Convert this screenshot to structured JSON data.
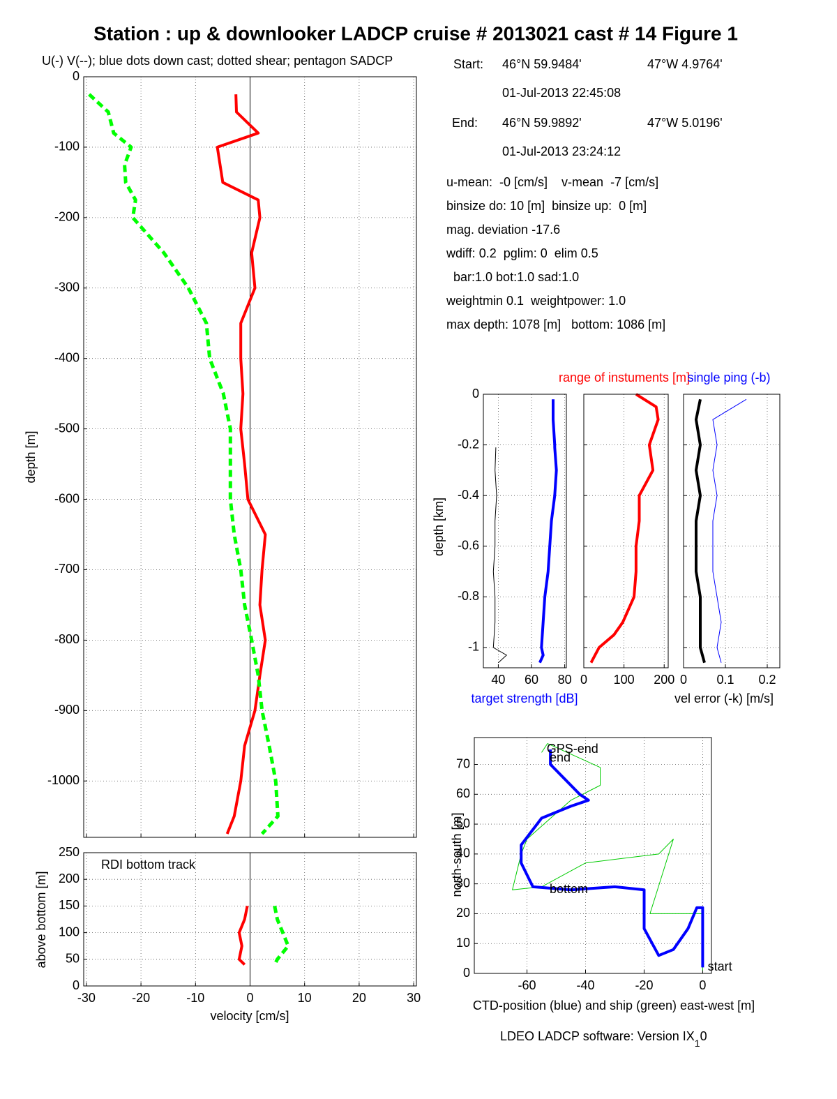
{
  "title": "Station : up & downlooker LADCP cruise # 2013021 cast # 14  Figure 1",
  "info": {
    "start": {
      "label": "Start:",
      "lat": "46°N 59.9484'",
      "lon": "47°W  4.9764'",
      "time": "01-Jul-2013 22:45:08"
    },
    "end": {
      "label": "End:",
      "lat": "46°N 59.9892'",
      "lon": "47°W  5.0196'",
      "time": "01-Jul-2013 23:24:12"
    },
    "lines": [
      "u-mean:  -0 [cm/s]    v-mean  -7 [cm/s]",
      "binsize do: 10 [m]  binsize up:  0 [m]",
      "mag. deviation -17.6",
      "wdiff: 0.2  pglim: 0  elim 0.5",
      "  bar:1.0 bot:1.0 sad:1.0",
      "weightmin 0.1  weightpower: 1.0",
      "max depth: 1078 [m]   bottom: 1086 [m]"
    ]
  },
  "footer": {
    "text": "LDEO LADCP software: Version IX",
    "subscript": "1",
    "after": "0"
  },
  "chart_data": [
    {
      "type": "profile",
      "subtitle": "U(-) V(--); blue dots down cast; dotted shear; pentagon SADCP",
      "ylabel": "depth [m]",
      "xlim": [
        -30.5,
        30.5
      ],
      "ylim": [
        -1080,
        0
      ],
      "yticks": [
        0,
        -100,
        -200,
        -300,
        -400,
        -500,
        -600,
        -700,
        -800,
        -900,
        -1000
      ],
      "grid": true,
      "depth": [
        -25,
        -50,
        -80,
        -100,
        -125,
        -150,
        -175,
        -200,
        -250,
        -300,
        -350,
        -400,
        -450,
        -500,
        -550,
        -600,
        -650,
        -700,
        -750,
        -800,
        -850,
        -900,
        -950,
        -1000,
        -1050,
        -1075
      ],
      "series": [
        {
          "color": "#ff0000",
          "style": "solid",
          "values": [
            -2.6,
            -2.5,
            1.5,
            -6,
            -5.5,
            -5,
            1.5,
            1.8,
            0.3,
            0.9,
            -1.7,
            -1.7,
            -1.3,
            -1.7,
            -1,
            -0.4,
            2.8,
            2.2,
            1.8,
            2.8,
            1.8,
            0.9,
            -1,
            -1.7,
            -2.9,
            -4.2
          ]
        },
        {
          "color": "#00ff00",
          "style": "dashed",
          "values": [
            -29.5,
            -26,
            -25,
            -21.8,
            -23,
            -22.8,
            -21,
            -21.5,
            -15.8,
            -11.3,
            -8,
            -7.4,
            -4.9,
            -3.6,
            -3.6,
            -3.6,
            -2.9,
            -1.7,
            -1,
            0.3,
            1.5,
            2.2,
            3.5,
            4.7,
            5.1,
            2.2
          ]
        }
      ]
    },
    {
      "type": "profile",
      "annotation": "RDI bottom track",
      "xlabel": "velocity [cm/s]",
      "ylabel": "above bottom [m]",
      "xlim": [
        -30.5,
        30.5
      ],
      "ylim": [
        0,
        250
      ],
      "xticks": [
        -30,
        -20,
        -10,
        0,
        10,
        20,
        30
      ],
      "yticks": [
        0,
        50,
        100,
        150,
        200,
        250
      ],
      "grid": true,
      "depth": [
        150,
        125,
        100,
        75,
        50,
        40
      ],
      "series": [
        {
          "color": "#ff0000",
          "style": "solid",
          "values": [
            -0.5,
            -1,
            -2,
            -1.5,
            -2,
            -1
          ]
        },
        {
          "color": "#00ff00",
          "style": "dashed",
          "values": [
            4.5,
            5,
            6,
            7,
            5,
            4.5
          ]
        }
      ]
    },
    {
      "type": "profile",
      "xlabel": "target strength [dB]",
      "ylabel": "depth [km]",
      "xlim": [
        31,
        81
      ],
      "ylim": [
        -1.08,
        0
      ],
      "xticks": [
        40,
        60,
        80
      ],
      "yticks": [
        0,
        -0.2,
        -0.4,
        -0.6,
        -0.8,
        -1
      ],
      "grid": true,
      "depth": [
        -0.02,
        -0.1,
        -0.2,
        -0.21,
        -0.3,
        -0.4,
        -0.5,
        -0.6,
        -0.7,
        -0.8,
        -0.9,
        -1,
        -1.03,
        -1.06
      ],
      "series": [
        {
          "color": "#000000",
          "style": "thin",
          "values": [
            null,
            null,
            null,
            38.5,
            38,
            39,
            38,
            38,
            37,
            38,
            38,
            37,
            45,
            40
          ]
        },
        {
          "color": "#0000ff",
          "style": "solid",
          "values": [
            73,
            73,
            74,
            74,
            75,
            74,
            72,
            71,
            70,
            68,
            67,
            66,
            67,
            65
          ]
        }
      ]
    },
    {
      "type": "profile",
      "title": "range of instuments [m]",
      "xlim": [
        0,
        210
      ],
      "ylim": [
        -1.08,
        0
      ],
      "xticks": [
        0,
        100,
        200
      ],
      "grid": true,
      "depth": [
        0,
        -0.05,
        -0.1,
        -0.2,
        -0.3,
        -0.4,
        -0.5,
        -0.6,
        -0.7,
        -0.8,
        -0.9,
        -0.95,
        -1,
        -1.06
      ],
      "series": [
        {
          "color": "#ff0000",
          "style": "solid",
          "values": [
            130,
            180,
            185,
            163,
            172,
            138,
            138,
            130,
            130,
            125,
            97,
            75,
            38,
            18
          ]
        }
      ]
    },
    {
      "type": "profile",
      "title": "single ping (-b)",
      "xlabel": "vel error (-k) [m/s]",
      "xlim": [
        0,
        0.23
      ],
      "ylim": [
        -1.08,
        0
      ],
      "xticks": [
        0,
        0.1,
        0.2
      ],
      "grid": true,
      "depth": [
        -0.02,
        -0.1,
        -0.2,
        -0.3,
        -0.4,
        -0.5,
        -0.6,
        -0.7,
        -0.8,
        -0.9,
        -1,
        -1.06
      ],
      "series": [
        {
          "color": "#000000",
          "style": "solid",
          "values": [
            0.04,
            0.03,
            0.04,
            0.03,
            0.04,
            0.03,
            0.03,
            0.03,
            0.04,
            0.04,
            0.04,
            0.05
          ]
        },
        {
          "color": "#0000ff",
          "style": "thin",
          "values": [
            0.15,
            0.07,
            0.08,
            0.07,
            0.08,
            0.07,
            0.07,
            0.07,
            0.08,
            0.09,
            0.08,
            0.09
          ]
        }
      ]
    },
    {
      "type": "track",
      "xlabel": "CTD-position (blue) and ship (green) east-west [m]",
      "ylabel": "north-south [m]",
      "xlim": [
        -78,
        3
      ],
      "ylim": [
        0,
        79
      ],
      "xticks": [
        -60,
        -40,
        -20,
        0
      ],
      "yticks": [
        0,
        10,
        20,
        30,
        40,
        50,
        60,
        70
      ],
      "grid": true,
      "series": [
        {
          "color": "#00cc00",
          "style": "thin",
          "x": [
            0,
            0,
            -18,
            -10,
            -15,
            -40,
            -55,
            -65,
            -62,
            -60,
            -45,
            -35,
            -35,
            -53,
            -55
          ],
          "values": [
            1,
            20,
            20,
            45,
            40,
            37,
            29,
            28,
            40,
            45,
            58,
            63,
            69,
            77,
            74
          ]
        },
        {
          "color": "#0000ff",
          "style": "solid",
          "x": [
            0,
            0,
            -2,
            -5,
            -10,
            -15,
            -20,
            -20,
            -30,
            -45,
            -58,
            -62,
            -62,
            -55,
            -45,
            -39,
            -42,
            -52,
            -52
          ],
          "values": [
            2,
            22,
            22,
            15,
            8,
            6,
            15,
            28,
            29,
            28,
            29,
            37,
            43,
            52,
            56,
            58,
            60,
            70,
            75
          ]
        }
      ],
      "annotations": [
        {
          "text": "GPS-end",
          "x": -54,
          "y": 75
        },
        {
          "text": "end",
          "x": -53,
          "y": 72
        },
        {
          "text": "bottom",
          "x": -53,
          "y": 28
        },
        {
          "text": "start",
          "x": 1,
          "y": 2
        }
      ]
    }
  ]
}
